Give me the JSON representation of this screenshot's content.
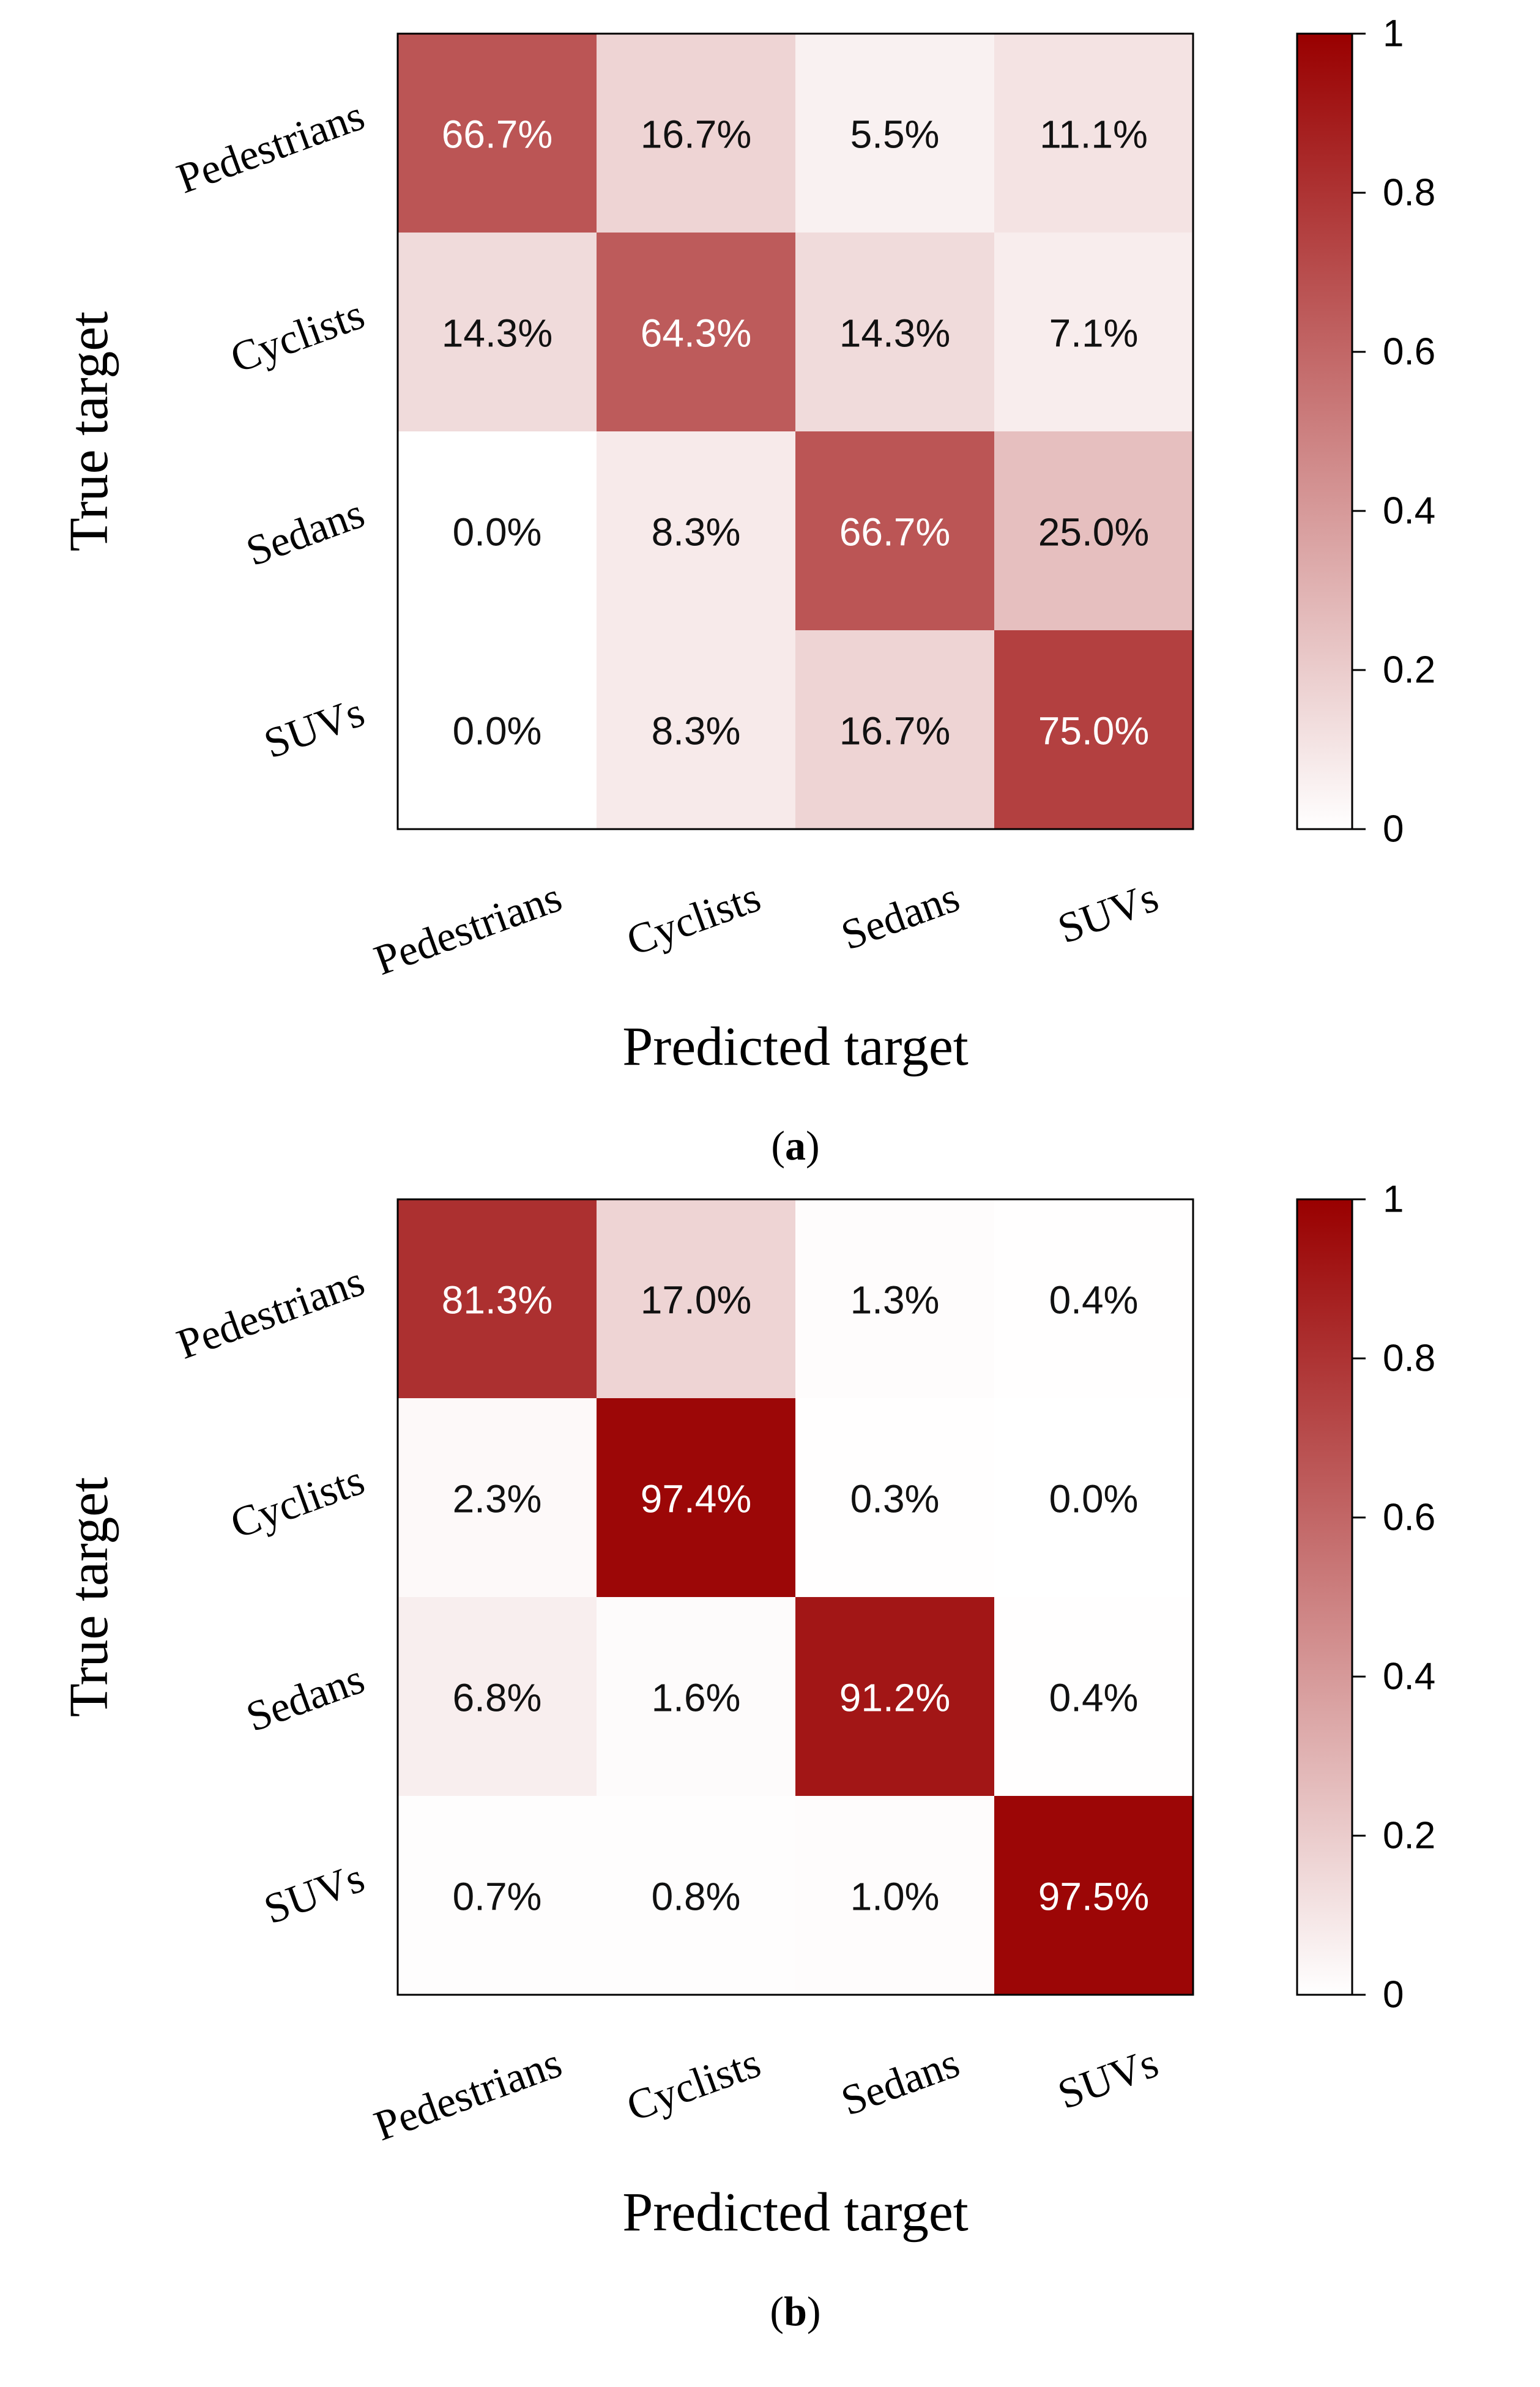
{
  "chart_data": [
    {
      "type": "heatmap",
      "panel": "a",
      "caption_letter": "a",
      "x_categories": [
        "Pedestrians",
        "Cyclists",
        "Sedans",
        "SUVs"
      ],
      "y_categories": [
        "Pedestrians",
        "Cyclists",
        "Sedans",
        "SUVs"
      ],
      "values": [
        [
          0.667,
          0.167,
          0.055,
          0.111
        ],
        [
          0.143,
          0.643,
          0.143,
          0.071
        ],
        [
          0.0,
          0.083,
          0.667,
          0.25
        ],
        [
          0.0,
          0.083,
          0.167,
          0.75
        ]
      ],
      "labels": [
        [
          "66.7%",
          "16.7%",
          "5.5%",
          "11.1%"
        ],
        [
          "14.3%",
          "64.3%",
          "14.3%",
          "7.1%"
        ],
        [
          "0.0%",
          "8.3%",
          "66.7%",
          "25.0%"
        ],
        [
          "0.0%",
          "8.3%",
          "16.7%",
          "75.0%"
        ]
      ],
      "xlabel": "Predicted target",
      "ylabel": "True target",
      "colorbar": {
        "min": 0,
        "max": 1,
        "ticks": [
          "0",
          "0.2",
          "0.4",
          "0.6",
          "0.8",
          "1"
        ],
        "low_color": "#ffffff",
        "high_color": "#990000"
      }
    },
    {
      "type": "heatmap",
      "panel": "b",
      "caption_letter": "b",
      "x_categories": [
        "Pedestrians",
        "Cyclists",
        "Sedans",
        "SUVs"
      ],
      "y_categories": [
        "Pedestrians",
        "Cyclists",
        "Sedans",
        "SUVs"
      ],
      "values": [
        [
          0.813,
          0.17,
          0.013,
          0.004
        ],
        [
          0.023,
          0.974,
          0.003,
          0.0
        ],
        [
          0.068,
          0.016,
          0.912,
          0.004
        ],
        [
          0.007,
          0.008,
          0.01,
          0.975
        ]
      ],
      "labels": [
        [
          "81.3%",
          "17.0%",
          "1.3%",
          "0.4%"
        ],
        [
          "2.3%",
          "97.4%",
          "0.3%",
          "0.0%"
        ],
        [
          "6.8%",
          "1.6%",
          "91.2%",
          "0.4%"
        ],
        [
          "0.7%",
          "0.8%",
          "1.0%",
          "97.5%"
        ]
      ],
      "xlabel": "Predicted target",
      "ylabel": "True target",
      "colorbar": {
        "min": 0,
        "max": 1,
        "ticks": [
          "0",
          "0.2",
          "0.4",
          "0.6",
          "0.8",
          "1"
        ],
        "low_color": "#ffffff",
        "high_color": "#990000"
      }
    }
  ]
}
